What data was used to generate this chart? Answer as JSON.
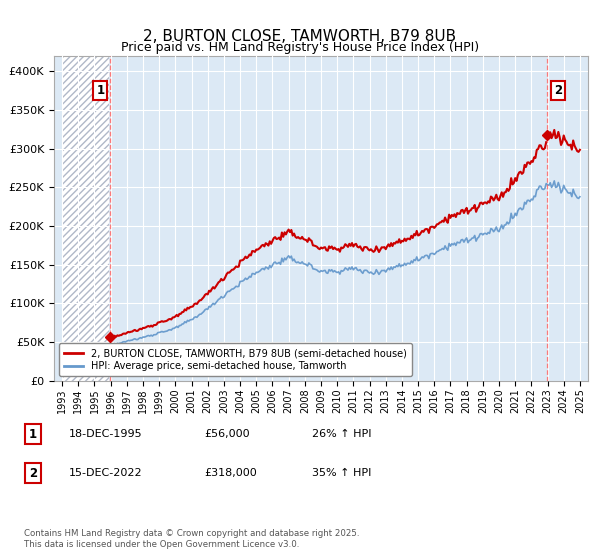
{
  "title": "2, BURTON CLOSE, TAMWORTH, B79 8UB",
  "subtitle": "Price paid vs. HM Land Registry's House Price Index (HPI)",
  "legend_label_1": "2, BURTON CLOSE, TAMWORTH, B79 8UB (semi-detached house)",
  "legend_label_2": "HPI: Average price, semi-detached house, Tamworth",
  "annotation_1_label": "1",
  "annotation_1_date": "18-DEC-1995",
  "annotation_1_price": "£56,000",
  "annotation_1_hpi": "26% ↑ HPI",
  "annotation_2_label": "2",
  "annotation_2_date": "15-DEC-2022",
  "annotation_2_price": "£318,000",
  "annotation_2_hpi": "35% ↑ HPI",
  "footer": "Contains HM Land Registry data © Crown copyright and database right 2025.\nThis data is licensed under the Open Government Licence v3.0.",
  "line1_color": "#cc0000",
  "line2_color": "#6699cc",
  "bg_color": "#dce9f5",
  "hatch_color": "#b0b8c8",
  "grid_color": "#ffffff",
  "sale1_x": 1995.96,
  "sale1_y": 56000,
  "sale2_x": 2022.96,
  "sale2_y": 318000,
  "ylim": [
    0,
    420000
  ],
  "xlim": [
    1992.5,
    2025.5
  ],
  "hpi_anchors_x": [
    1993,
    1995,
    1996,
    1997,
    1998,
    1999,
    2000,
    2001,
    2002,
    2003,
    2004,
    2005,
    2006,
    2007,
    2008,
    2009,
    2010,
    2011,
    2012,
    2013,
    2014,
    2015,
    2016,
    2017,
    2018,
    2019,
    2020,
    2021,
    2022,
    2022.5,
    2023,
    2023.5,
    2024,
    2024.5,
    2025
  ],
  "hpi_anchors_y": [
    37000,
    44000,
    47000,
    51000,
    56000,
    62000,
    68000,
    79000,
    93000,
    111000,
    126000,
    140000,
    150000,
    158000,
    152000,
    141000,
    142000,
    145000,
    140000,
    143000,
    150000,
    157000,
    166000,
    176000,
    181000,
    189000,
    195000,
    215000,
    235000,
    248000,
    252000,
    255000,
    248000,
    242000,
    238000
  ]
}
